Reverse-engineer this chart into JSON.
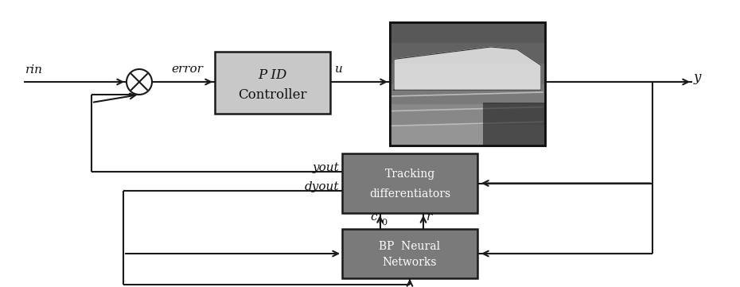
{
  "bg": "#ffffff",
  "lc": "#1a1a1a",
  "pid_fill": "#c8c8c8",
  "td_fill": "#7a7a7a",
  "bp_fill": "#7a7a7a",
  "white_text": "#ffffff",
  "black_text": "#111111",
  "fig_w": 9.3,
  "fig_h": 3.61,
  "dpi": 100,
  "pid_text1": "P ID",
  "pid_text2": "Controller",
  "td_text1": "Tracking",
  "td_text2": "differentiators",
  "bp_text1": "BP  Neural",
  "bp_text2": "Networks",
  "lbl_rin": "rin",
  "lbl_error": "error",
  "lbl_u": "u",
  "lbl_y": "y",
  "lbl_yout": "yout",
  "lbl_dyout": "dyout",
  "lbl_c0": "c",
  "lbl_c0_sub": "0",
  "lbl_r": "r"
}
